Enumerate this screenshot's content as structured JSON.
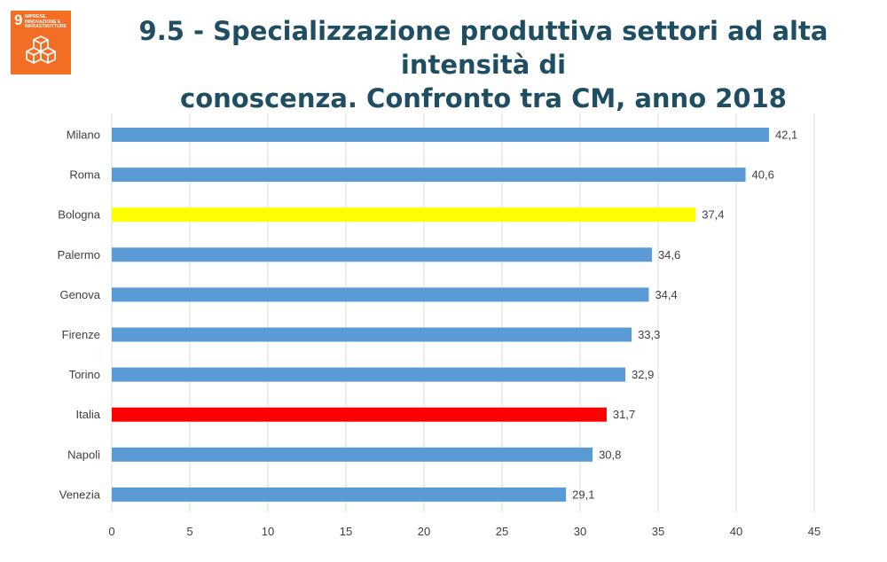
{
  "logo": {
    "number": "9",
    "text": "IMPRESE, INNOVAZIONE E INFRASTRUTTURE",
    "icon": "cubes-icon",
    "color": "#f36d25"
  },
  "title": {
    "line1": "9.5 - Specializzazione produttiva settori ad alta intensità di",
    "line2": "conoscenza. Confronto tra CM, anno 2018"
  },
  "chart_data": {
    "type": "bar",
    "orientation": "horizontal",
    "categories": [
      "Milano",
      "Roma",
      "Bologna",
      "Palermo",
      "Genova",
      "Firenze",
      "Torino",
      "Italia",
      "Napoli",
      "Venezia"
    ],
    "values": [
      42.1,
      40.6,
      37.4,
      34.6,
      34.4,
      33.3,
      32.9,
      31.7,
      30.8,
      29.1
    ],
    "value_labels": [
      "42,1",
      "40,6",
      "37,4",
      "34,6",
      "34,4",
      "33,3",
      "32,9",
      "31,7",
      "30,8",
      "29,1"
    ],
    "colors": [
      "#5b9bd5",
      "#5b9bd5",
      "#ffff00",
      "#5b9bd5",
      "#5b9bd5",
      "#5b9bd5",
      "#5b9bd5",
      "#ff0000",
      "#5b9bd5",
      "#5b9bd5"
    ],
    "xlim": [
      0,
      45
    ],
    "xticks": [
      0,
      5,
      10,
      15,
      20,
      25,
      30,
      35,
      40,
      45
    ],
    "grid": true,
    "legend": "none"
  }
}
